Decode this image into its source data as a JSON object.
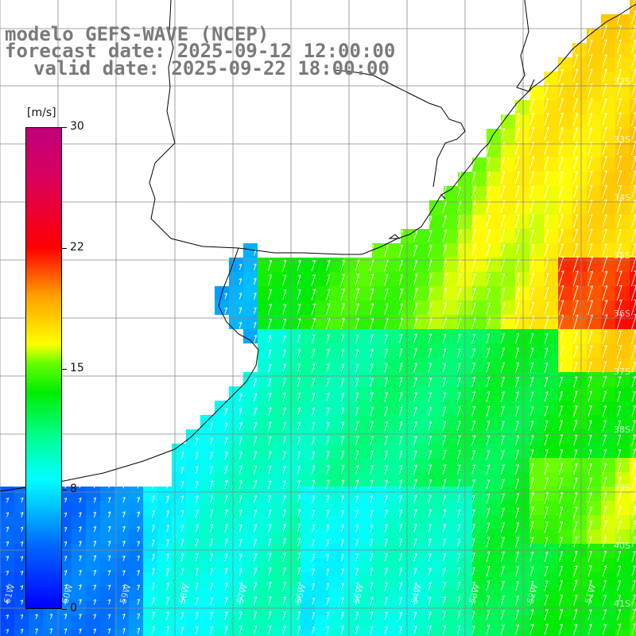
{
  "title": {
    "line1": "modelo GEFS-WAVE (NCEP)",
    "line2": "forecast date: 2025-09-12 12:00:00",
    "line3": "valid date: 2025-09-22 18:00:00"
  },
  "colorbar": {
    "unit": "[m/s]",
    "ticks": [
      "30",
      "22",
      "15",
      "8",
      "0"
    ]
  },
  "lat_labels": [
    "32S",
    "33S",
    "34S",
    "35S",
    "36S",
    "37S",
    "38S",
    "39S",
    "40S",
    "41S"
  ],
  "lon_labels": [
    "61W",
    "60W",
    "59W",
    "58W",
    "57W",
    "56W",
    "55W",
    "54W",
    "53W",
    "52W",
    "51W"
  ],
  "palette": [
    "#0000ff",
    "#0066ff",
    "#00ccff",
    "#00ffff",
    "#00ff99",
    "#00ee00",
    "#66ff00",
    "#ffff00",
    "#ffa000",
    "#ff0000",
    "#c0007a"
  ],
  "icons": [
    "wind-arrow-icon"
  ]
}
